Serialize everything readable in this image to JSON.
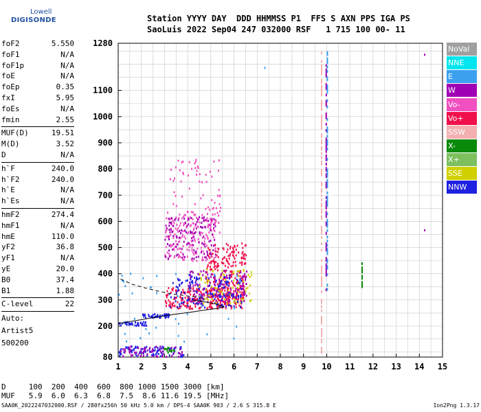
{
  "logo": {
    "line1": "Lowell",
    "line2": "DIGISONDE"
  },
  "header": {
    "line1": "Station YYYY DAY  DDD HHMMSS P1  FFS S AXN PPS IGA PS",
    "line2": "SaoLuis 2022 Sep04 247 032000 RSF   1 715 100 00- 11"
  },
  "params": {
    "group1": [
      {
        "label": "foF2",
        "value": "5.550"
      },
      {
        "label": "foF1",
        "value": "N/A"
      },
      {
        "label": "foF1p",
        "value": "N/A"
      },
      {
        "label": "foE",
        "value": "N/A"
      },
      {
        "label": "foEp",
        "value": "0.35"
      },
      {
        "label": "fxI",
        "value": "5.95"
      },
      {
        "label": "foEs",
        "value": "N/A"
      },
      {
        "label": "fmin",
        "value": "2.55"
      }
    ],
    "group2": [
      {
        "label": "MUF(D)",
        "value": "19.51"
      },
      {
        "label": "M(D)",
        "value": "3.52"
      },
      {
        "label": "D",
        "value": "N/A"
      }
    ],
    "group3": [
      {
        "label": "h`F",
        "value": "240.0"
      },
      {
        "label": "h`F2",
        "value": "240.0"
      },
      {
        "label": "h`E",
        "value": "N/A"
      },
      {
        "label": "h`Es",
        "value": "N/A"
      }
    ],
    "group4": [
      {
        "label": "hmF2",
        "value": "274.4"
      },
      {
        "label": "hmF1",
        "value": "N/A"
      },
      {
        "label": "hmE",
        "value": "110.0"
      },
      {
        "label": "yF2",
        "value": "36.8"
      },
      {
        "label": "yF1",
        "value": "N/A"
      },
      {
        "label": "yE",
        "value": "20.0"
      },
      {
        "label": "B0",
        "value": "37.4"
      },
      {
        "label": "B1",
        "value": "1.88"
      }
    ],
    "group5": [
      {
        "label": "C-level",
        "value": "22"
      }
    ],
    "auto": [
      "Auto:",
      "Artist5",
      "500200"
    ]
  },
  "legend": [
    {
      "label": "NoVal",
      "color": "#a0a0a0"
    },
    {
      "label": "NNE",
      "color": "#00e5ee"
    },
    {
      "label": "E",
      "color": "#3ca0f0"
    },
    {
      "label": "W",
      "color": "#a000b4"
    },
    {
      "label": "Vo-",
      "color": "#f050c0"
    },
    {
      "label": "Vo+",
      "color": "#f0104c"
    },
    {
      "label": "SSW",
      "color": "#f4b0b0"
    },
    {
      "label": "X-",
      "color": "#0a8a0a"
    },
    {
      "label": "X+",
      "color": "#7ec060"
    },
    {
      "label": "SSE",
      "color": "#d0d000"
    },
    {
      "label": "NNW",
      "color": "#2020e0"
    }
  ],
  "dmuf": {
    "line1": "D     100  200  400  600  800 1000 1500 3000 [km]",
    "line2": "MUF   5.9  6.0  6.3  6.8  7.5  8.6 11.6 19.5 [MHz]"
  },
  "footer": {
    "left": "SAA0K_2022247032000.RSF / 280fx256h 50 kHz 5.0 km / DPS-4 SAA0K 903 / 2.6 S 315.8 E",
    "right": "Ion2Png 1.3.17"
  },
  "chart_data": {
    "type": "scatter",
    "title": "",
    "xlabel": "",
    "ylabel": "",
    "xlim": [
      1,
      15
    ],
    "ylim": [
      80,
      1280
    ],
    "xticks": [
      1,
      2,
      3,
      4,
      5,
      6,
      7,
      8,
      9,
      10,
      11,
      12,
      13,
      14,
      15
    ],
    "yticks": [
      80,
      200,
      300,
      400,
      500,
      600,
      700,
      800,
      900,
      1000,
      1100,
      1280
    ],
    "grid": true,
    "legend_position": "right",
    "curves": [
      {
        "style": "solid",
        "points": [
          [
            1.0,
            210
          ],
          [
            2.0,
            225
          ],
          [
            3.0,
            240
          ],
          [
            4.0,
            252
          ],
          [
            4.8,
            262
          ],
          [
            5.3,
            268
          ],
          [
            5.55,
            274
          ],
          [
            5.3,
            283
          ],
          [
            4.8,
            292
          ],
          [
            4.2,
            300
          ]
        ]
      },
      {
        "style": "dashed",
        "points": [
          [
            1.1,
            380
          ],
          [
            1.6,
            360
          ],
          [
            2.2,
            345
          ],
          [
            2.8,
            332
          ],
          [
            3.4,
            322
          ],
          [
            4.0,
            315
          ],
          [
            4.7,
            310
          ]
        ]
      }
    ],
    "clusters": [
      {
        "color": "#f0104c",
        "xr": [
          3.0,
          6.4
        ],
        "yr": [
          270,
          350
        ],
        "n": 260
      },
      {
        "color": "#f0104c",
        "xr": [
          4.8,
          6.5
        ],
        "yr": [
          310,
          520
        ],
        "n": 230
      },
      {
        "color": "#a000b4",
        "xr": [
          4.0,
          6.6
        ],
        "yr": [
          290,
          420
        ],
        "n": 150
      },
      {
        "color": "#2020e0",
        "xr": [
          3.2,
          6.3
        ],
        "yr": [
          275,
          400
        ],
        "n": 140
      },
      {
        "color": "#d0d000",
        "xr": [
          4.4,
          6.8
        ],
        "yr": [
          290,
          420
        ],
        "n": 70
      },
      {
        "color": "#f050c0",
        "xr": [
          3.0,
          5.2
        ],
        "yr": [
          450,
          640
        ],
        "n": 190
      },
      {
        "color": "#a000b4",
        "xr": [
          3.0,
          5.2
        ],
        "yr": [
          460,
          620
        ],
        "n": 120
      },
      {
        "color": "#f050c0",
        "xr": [
          3.2,
          5.4
        ],
        "yr": [
          560,
          840
        ],
        "n": 80
      },
      {
        "color": "#2020e0",
        "xr": [
          2.0,
          3.2
        ],
        "yr": [
          235,
          250
        ],
        "n": 50
      },
      {
        "color": "#2020e0",
        "xr": [
          1.0,
          2.2
        ],
        "yr": [
          205,
          220
        ],
        "n": 40
      },
      {
        "color": "#2020e0",
        "xr": [
          1.0,
          3.8
        ],
        "yr": [
          85,
          125
        ],
        "n": 90
      },
      {
        "color": "#a000b4",
        "xr": [
          1.0,
          3.8
        ],
        "yr": [
          85,
          125
        ],
        "n": 60
      },
      {
        "color": "#0a8a0a",
        "xr": [
          2.8,
          3.4
        ],
        "yr": [
          100,
          120
        ],
        "n": 15
      },
      {
        "color": "#3ca0f0",
        "xr": [
          1.0,
          6.5
        ],
        "yr": [
          140,
          420
        ],
        "n": 40
      }
    ],
    "vertical_traces": [
      {
        "color": "#f4b0b0",
        "x": 9.75,
        "yr": [
          90,
          1250
        ]
      },
      {
        "color": "#a000b4",
        "x": 9.95,
        "yr": [
          330,
          1200
        ]
      },
      {
        "color": "#3ca0f0",
        "x": 10.0,
        "yr": [
          340,
          1250
        ]
      },
      {
        "color": "#0a8a0a",
        "x": 11.5,
        "yr": [
          350,
          460
        ]
      }
    ],
    "isolated_points": [
      {
        "color": "#3ca0f0",
        "x": 7.3,
        "y": 1190
      },
      {
        "color": "#a000b4",
        "x": 14.2,
        "y": 1240
      },
      {
        "color": "#a000b4",
        "x": 14.2,
        "y": 570
      },
      {
        "color": "#3ca0f0",
        "x": 10.0,
        "y": 1240
      }
    ]
  }
}
